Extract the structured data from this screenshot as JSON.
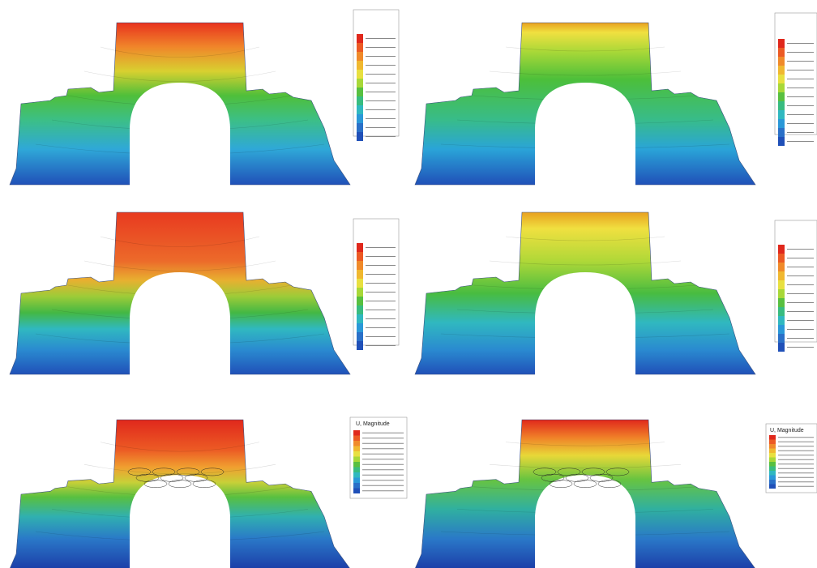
{
  "legends": {
    "bottom_left_title": "U, Magnitude",
    "bottom_right_title": "U, Magnitude"
  }
}
